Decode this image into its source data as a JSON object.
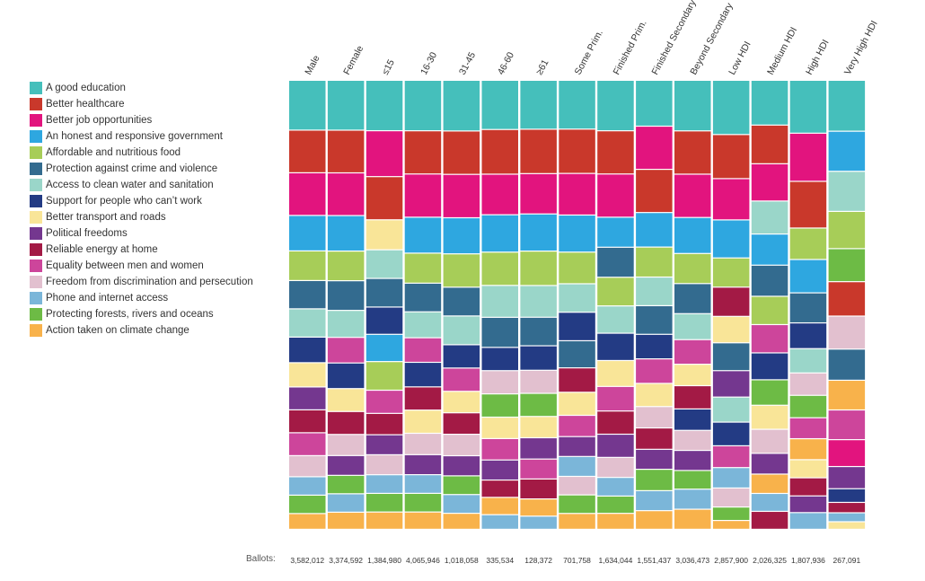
{
  "chart_data": {
    "type": "stacked-bar",
    "ballots_label": "Ballots:",
    "categories": [
      "Male",
      "Female",
      "≤15",
      "16-30",
      "31-45",
      "46-60",
      "≥61",
      "Some Prim.",
      "Finished Prim.",
      "Finished Secondary",
      "Beyond Secondary",
      "Low HDI",
      "Medium HDI",
      "High HDI",
      "Very High HDI"
    ],
    "ballots": [
      "3,582,012",
      "3,374,592",
      "1,384,980",
      "4,065,946",
      "1,018,058",
      "335,534",
      "128,372",
      "701,758",
      "1,634,044",
      "1,551,437",
      "3,036,473",
      "2,857,900",
      "2,026,325",
      "1,807,936",
      "267,091"
    ],
    "legend": [
      {
        "key": "edu",
        "label": "A good education",
        "color": "#45bfbb"
      },
      {
        "key": "health",
        "label": "Better healthcare",
        "color": "#c9382b"
      },
      {
        "key": "jobs",
        "label": "Better job opportunities",
        "color": "#e2147e"
      },
      {
        "key": "gov",
        "label": "An honest and responsive government",
        "color": "#2ea7e0"
      },
      {
        "key": "food",
        "label": "Affordable and nutritious food",
        "color": "#a7cd58"
      },
      {
        "key": "crime",
        "label": "Protection against crime and violence",
        "color": "#336b8f"
      },
      {
        "key": "water",
        "label": "Access to clean water and sanitation",
        "color": "#9ad6c9"
      },
      {
        "key": "support",
        "label": "Support for people who can’t work",
        "color": "#233b84"
      },
      {
        "key": "transport",
        "label": "Better transport and roads",
        "color": "#f9e598"
      },
      {
        "key": "political",
        "label": "Political freedoms",
        "color": "#74378f"
      },
      {
        "key": "energy",
        "label": "Reliable energy at home",
        "color": "#a31a45"
      },
      {
        "key": "equality",
        "label": "Equality between men and women",
        "color": "#cd459b"
      },
      {
        "key": "discrim",
        "label": "Freedom from discrimination and persecution",
        "color": "#e2c0cf"
      },
      {
        "key": "phone",
        "label": "Phone and internet access",
        "color": "#7bb6d9"
      },
      {
        "key": "forests",
        "label": "Protecting forests, rivers and oceans",
        "color": "#6dbb45"
      },
      {
        "key": "climate",
        "label": "Action taken on climate change",
        "color": "#f8b24b"
      }
    ],
    "segment_units": "share of ballots (%), estimated",
    "stacks": [
      [
        [
          "edu",
          11.1
        ],
        [
          "health",
          9.5
        ],
        [
          "jobs",
          9.5
        ],
        [
          "gov",
          7.9
        ],
        [
          "food",
          6.6
        ],
        [
          "crime",
          6.3
        ],
        [
          "water",
          6.3
        ],
        [
          "support",
          5.7
        ],
        [
          "transport",
          5.4
        ],
        [
          "political",
          5.1
        ],
        [
          "energy",
          5.1
        ],
        [
          "equality",
          5.1
        ],
        [
          "discrim",
          4.7
        ],
        [
          "phone",
          4.1
        ],
        [
          "forests",
          4.1
        ],
        [
          "climate",
          3.5
        ]
      ],
      [
        [
          "edu",
          11.1
        ],
        [
          "health",
          9.5
        ],
        [
          "jobs",
          9.5
        ],
        [
          "gov",
          7.9
        ],
        [
          "food",
          6.6
        ],
        [
          "crime",
          6.6
        ],
        [
          "water",
          6.0
        ],
        [
          "equality",
          5.7
        ],
        [
          "support",
          5.7
        ],
        [
          "transport",
          5.1
        ],
        [
          "energy",
          5.1
        ],
        [
          "discrim",
          4.7
        ],
        [
          "political",
          4.4
        ],
        [
          "forests",
          4.1
        ],
        [
          "phone",
          4.1
        ],
        [
          "climate",
          3.8
        ]
      ],
      [
        [
          "edu",
          11.1
        ],
        [
          "jobs",
          10.1
        ],
        [
          "health",
          9.5
        ],
        [
          "transport",
          6.6
        ],
        [
          "water",
          6.3
        ],
        [
          "crime",
          6.3
        ],
        [
          "support",
          6.0
        ],
        [
          "gov",
          6.0
        ],
        [
          "food",
          6.3
        ],
        [
          "equality",
          5.1
        ],
        [
          "energy",
          4.7
        ],
        [
          "political",
          4.4
        ],
        [
          "discrim",
          4.4
        ],
        [
          "phone",
          4.1
        ],
        [
          "forests",
          4.1
        ],
        [
          "climate",
          3.8
        ]
      ],
      [
        [
          "edu",
          11.1
        ],
        [
          "health",
          9.5
        ],
        [
          "jobs",
          9.5
        ],
        [
          "gov",
          7.9
        ],
        [
          "food",
          6.6
        ],
        [
          "crime",
          6.3
        ],
        [
          "water",
          5.7
        ],
        [
          "equality",
          5.4
        ],
        [
          "support",
          5.4
        ],
        [
          "energy",
          5.1
        ],
        [
          "transport",
          5.1
        ],
        [
          "discrim",
          4.7
        ],
        [
          "political",
          4.4
        ],
        [
          "phone",
          4.1
        ],
        [
          "forests",
          4.1
        ],
        [
          "climate",
          3.8
        ]
      ],
      [
        [
          "edu",
          11.1
        ],
        [
          "health",
          9.5
        ],
        [
          "jobs",
          9.5
        ],
        [
          "gov",
          7.9
        ],
        [
          "food",
          7.3
        ],
        [
          "crime",
          6.3
        ],
        [
          "water",
          6.3
        ],
        [
          "support",
          5.1
        ],
        [
          "equality",
          5.1
        ],
        [
          "transport",
          4.7
        ],
        [
          "energy",
          4.7
        ],
        [
          "discrim",
          4.7
        ],
        [
          "political",
          4.4
        ],
        [
          "forests",
          4.1
        ],
        [
          "phone",
          4.1
        ],
        [
          "climate",
          3.5
        ]
      ],
      [
        [
          "edu",
          10.8
        ],
        [
          "health",
          9.8
        ],
        [
          "jobs",
          8.9
        ],
        [
          "gov",
          8.2
        ],
        [
          "food",
          7.3
        ],
        [
          "water",
          7.0
        ],
        [
          "crime",
          6.6
        ],
        [
          "support",
          5.1
        ],
        [
          "discrim",
          5.1
        ],
        [
          "forests",
          5.1
        ],
        [
          "transport",
          4.7
        ],
        [
          "equality",
          4.7
        ],
        [
          "political",
          4.4
        ],
        [
          "energy",
          3.8
        ],
        [
          "climate",
          3.8
        ],
        [
          "phone",
          3.2
        ]
      ],
      [
        [
          "edu",
          10.8
        ],
        [
          "health",
          9.8
        ],
        [
          "jobs",
          8.9
        ],
        [
          "gov",
          8.2
        ],
        [
          "food",
          7.6
        ],
        [
          "water",
          7.0
        ],
        [
          "crime",
          6.3
        ],
        [
          "support",
          5.4
        ],
        [
          "discrim",
          5.1
        ],
        [
          "forests",
          5.1
        ],
        [
          "transport",
          4.7
        ],
        [
          "political",
          4.7
        ],
        [
          "equality",
          4.4
        ],
        [
          "energy",
          4.4
        ],
        [
          "climate",
          3.8
        ],
        [
          "phone",
          2.9
        ]
      ],
      [
        [
          "edu",
          10.8
        ],
        [
          "health",
          9.8
        ],
        [
          "jobs",
          9.2
        ],
        [
          "gov",
          8.2
        ],
        [
          "food",
          7.0
        ],
        [
          "water",
          6.3
        ],
        [
          "support",
          6.3
        ],
        [
          "crime",
          6.0
        ],
        [
          "energy",
          5.4
        ],
        [
          "transport",
          5.1
        ],
        [
          "equality",
          4.7
        ],
        [
          "political",
          4.4
        ],
        [
          "phone",
          4.4
        ],
        [
          "discrim",
          4.1
        ],
        [
          "forests",
          4.1
        ],
        [
          "climate",
          3.5
        ]
      ],
      [
        [
          "edu",
          11.1
        ],
        [
          "health",
          9.5
        ],
        [
          "jobs",
          9.5
        ],
        [
          "gov",
          6.6
        ],
        [
          "crime",
          6.6
        ],
        [
          "food",
          6.3
        ],
        [
          "water",
          6.0
        ],
        [
          "support",
          6.0
        ],
        [
          "transport",
          5.7
        ],
        [
          "equality",
          5.4
        ],
        [
          "energy",
          5.1
        ],
        [
          "political",
          5.1
        ],
        [
          "discrim",
          4.4
        ],
        [
          "phone",
          4.1
        ],
        [
          "forests",
          3.8
        ],
        [
          "climate",
          3.5
        ]
      ],
      [
        [
          "edu",
          10.1
        ],
        [
          "jobs",
          9.5
        ],
        [
          "health",
          9.5
        ],
        [
          "gov",
          7.6
        ],
        [
          "food",
          6.6
        ],
        [
          "water",
          6.3
        ],
        [
          "crime",
          6.3
        ],
        [
          "support",
          5.4
        ],
        [
          "equality",
          5.4
        ],
        [
          "transport",
          5.1
        ],
        [
          "discrim",
          4.7
        ],
        [
          "energy",
          4.7
        ],
        [
          "political",
          4.4
        ],
        [
          "forests",
          4.7
        ],
        [
          "phone",
          4.4
        ],
        [
          "climate",
          4.1
        ]
      ],
      [
        [
          "edu",
          11.1
        ],
        [
          "health",
          9.5
        ],
        [
          "jobs",
          9.5
        ],
        [
          "gov",
          7.9
        ],
        [
          "food",
          6.6
        ],
        [
          "crime",
          6.6
        ],
        [
          "water",
          5.7
        ],
        [
          "equality",
          5.4
        ],
        [
          "transport",
          4.7
        ],
        [
          "energy",
          5.1
        ],
        [
          "support",
          4.7
        ],
        [
          "discrim",
          4.4
        ],
        [
          "political",
          4.4
        ],
        [
          "forests",
          4.1
        ],
        [
          "phone",
          4.4
        ],
        [
          "climate",
          4.4
        ]
      ],
      [
        [
          "edu",
          11.7
        ],
        [
          "health",
          9.5
        ],
        [
          "jobs",
          8.9
        ],
        [
          "gov",
          8.2
        ],
        [
          "food",
          6.3
        ],
        [
          "energy",
          6.3
        ],
        [
          "transport",
          5.7
        ],
        [
          "crime",
          6.0
        ],
        [
          "political",
          5.7
        ],
        [
          "water",
          5.4
        ],
        [
          "support",
          5.1
        ],
        [
          "equality",
          4.7
        ],
        [
          "phone",
          4.4
        ],
        [
          "discrim",
          4.1
        ],
        [
          "forests",
          2.9
        ],
        [
          "climate",
          1.9
        ]
      ],
      [
        [
          "edu",
          9.5
        ],
        [
          "health",
          8.2
        ],
        [
          "jobs",
          7.9
        ],
        [
          "water",
          7.0
        ],
        [
          "gov",
          6.6
        ],
        [
          "crime",
          6.6
        ],
        [
          "food",
          6.0
        ],
        [
          "equality",
          6.0
        ],
        [
          "support",
          5.7
        ],
        [
          "forests",
          5.4
        ],
        [
          "transport",
          5.1
        ],
        [
          "discrim",
          5.1
        ],
        [
          "political",
          4.4
        ],
        [
          "climate",
          4.1
        ],
        [
          "phone",
          3.8
        ],
        [
          "energy",
          3.8
        ]
      ],
      [
        [
          "edu",
          11.1
        ],
        [
          "jobs",
          10.1
        ],
        [
          "health",
          9.8
        ],
        [
          "food",
          6.6
        ],
        [
          "gov",
          7.0
        ],
        [
          "crime",
          6.3
        ],
        [
          "support",
          5.4
        ],
        [
          "water",
          5.1
        ],
        [
          "discrim",
          4.7
        ],
        [
          "forests",
          4.7
        ],
        [
          "equality",
          4.4
        ],
        [
          "climate",
          4.4
        ],
        [
          "transport",
          3.8
        ],
        [
          "energy",
          3.8
        ],
        [
          "political",
          3.5
        ],
        [
          "phone",
          3.5
        ]
      ],
      [
        [
          "edu",
          10.8
        ],
        [
          "gov",
          8.5
        ],
        [
          "water",
          8.5
        ],
        [
          "food",
          7.9
        ],
        [
          "forests",
          7.0
        ],
        [
          "health",
          7.3
        ],
        [
          "discrim",
          7.0
        ],
        [
          "crime",
          6.6
        ],
        [
          "climate",
          6.3
        ],
        [
          "equality",
          6.3
        ],
        [
          "jobs",
          5.7
        ],
        [
          "political",
          4.7
        ],
        [
          "support",
          2.9
        ],
        [
          "energy",
          2.2
        ],
        [
          "phone",
          1.9
        ],
        [
          "transport",
          1.6
        ]
      ]
    ]
  }
}
